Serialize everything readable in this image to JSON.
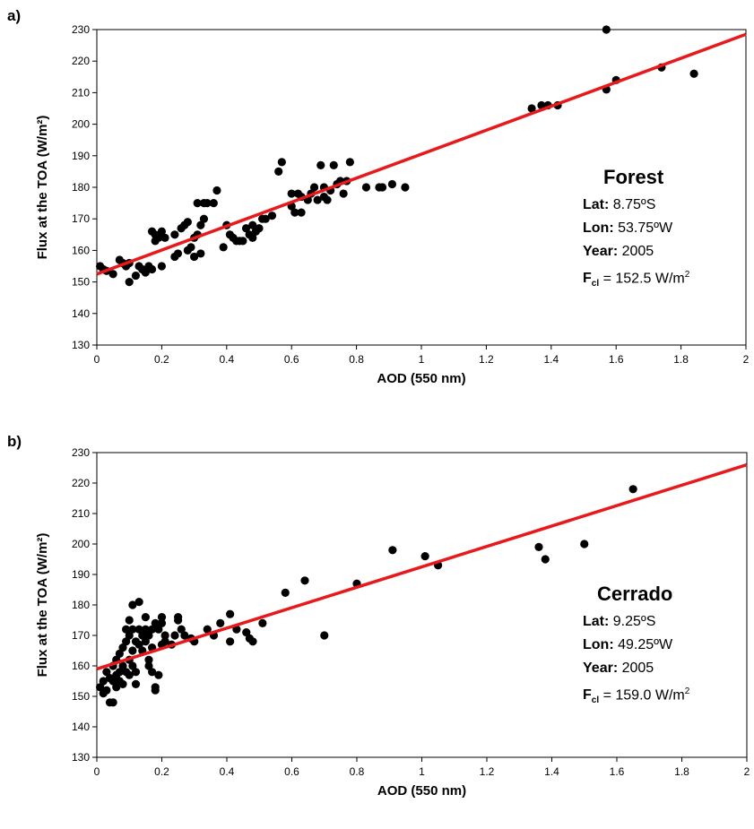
{
  "chart_data": [
    {
      "type": "scatter",
      "panel_label": "a)",
      "xlabel": "AOD (550 nm)",
      "ylabel": "Flux at the TOA (W/m²)",
      "xlim": [
        0,
        2
      ],
      "ylim": [
        130,
        230
      ],
      "xticks": [
        "0",
        "0.2",
        "0.4",
        "0.6",
        "0.8",
        "1",
        "1.2",
        "1.4",
        "1.6",
        "1.8",
        "2"
      ],
      "yticks": [
        "130",
        "140",
        "150",
        "160",
        "170",
        "180",
        "190",
        "200",
        "210",
        "220",
        "230"
      ],
      "grid": false,
      "marker_color": "#000000",
      "fit_color": "#e8181b",
      "fit_line": {
        "x": [
          0,
          2
        ],
        "y": [
          152.5,
          228.5
        ]
      },
      "annotation": {
        "title": "Forest",
        "lat_label": "Lat:",
        "lat_value": "8.75ºS",
        "lon_label": "Lon:",
        "lon_value": "53.75ºW",
        "year_label": "Year:",
        "year_value": "2005",
        "fcl_label": "F",
        "fcl_sub": "cl",
        "fcl_value": "= 152.5 W/m",
        "fcl_sup": "2"
      },
      "points": [
        [
          0.01,
          155
        ],
        [
          0.02,
          154
        ],
        [
          0.03,
          153.5
        ],
        [
          0.05,
          152.5
        ],
        [
          0.07,
          157
        ],
        [
          0.08,
          156
        ],
        [
          0.09,
          155
        ],
        [
          0.1,
          150
        ],
        [
          0.1,
          156
        ],
        [
          0.12,
          152
        ],
        [
          0.13,
          155
        ],
        [
          0.14,
          154
        ],
        [
          0.15,
          153
        ],
        [
          0.16,
          155
        ],
        [
          0.17,
          154
        ],
        [
          0.17,
          166
        ],
        [
          0.18,
          165
        ],
        [
          0.18,
          163
        ],
        [
          0.19,
          164
        ],
        [
          0.2,
          155
        ],
        [
          0.2,
          166
        ],
        [
          0.21,
          164
        ],
        [
          0.24,
          158
        ],
        [
          0.24,
          165
        ],
        [
          0.25,
          159
        ],
        [
          0.26,
          167
        ],
        [
          0.27,
          168
        ],
        [
          0.28,
          160
        ],
        [
          0.28,
          169
        ],
        [
          0.29,
          161
        ],
        [
          0.3,
          158
        ],
        [
          0.3,
          164
        ],
        [
          0.31,
          165
        ],
        [
          0.31,
          175
        ],
        [
          0.32,
          159
        ],
        [
          0.32,
          168
        ],
        [
          0.33,
          170
        ],
        [
          0.33,
          175
        ],
        [
          0.34,
          175
        ],
        [
          0.36,
          175
        ],
        [
          0.37,
          179
        ],
        [
          0.39,
          161
        ],
        [
          0.4,
          168
        ],
        [
          0.41,
          165
        ],
        [
          0.42,
          164
        ],
        [
          0.43,
          163
        ],
        [
          0.44,
          163
        ],
        [
          0.45,
          163
        ],
        [
          0.46,
          167
        ],
        [
          0.47,
          165
        ],
        [
          0.48,
          164
        ],
        [
          0.48,
          168
        ],
        [
          0.49,
          166
        ],
        [
          0.5,
          167
        ],
        [
          0.51,
          170
        ],
        [
          0.52,
          170
        ],
        [
          0.54,
          171
        ],
        [
          0.56,
          185
        ],
        [
          0.57,
          188
        ],
        [
          0.6,
          178
        ],
        [
          0.6,
          174
        ],
        [
          0.61,
          172
        ],
        [
          0.62,
          178
        ],
        [
          0.63,
          177
        ],
        [
          0.63,
          172
        ],
        [
          0.65,
          176
        ],
        [
          0.66,
          178
        ],
        [
          0.67,
          180
        ],
        [
          0.68,
          176
        ],
        [
          0.69,
          187
        ],
        [
          0.7,
          180
        ],
        [
          0.7,
          177
        ],
        [
          0.71,
          176
        ],
        [
          0.72,
          179
        ],
        [
          0.73,
          187
        ],
        [
          0.74,
          181
        ],
        [
          0.75,
          182
        ],
        [
          0.76,
          178
        ],
        [
          0.77,
          182
        ],
        [
          0.78,
          188
        ],
        [
          0.83,
          180
        ],
        [
          0.87,
          180
        ],
        [
          0.88,
          180
        ],
        [
          0.91,
          181
        ],
        [
          0.95,
          180
        ],
        [
          1.34,
          205
        ],
        [
          1.37,
          206
        ],
        [
          1.39,
          206
        ],
        [
          1.42,
          206
        ],
        [
          1.57,
          230
        ],
        [
          1.57,
          211
        ],
        [
          1.6,
          214
        ],
        [
          1.74,
          218
        ],
        [
          1.84,
          216
        ]
      ]
    },
    {
      "type": "scatter",
      "panel_label": "b)",
      "xlabel": "AOD (550 nm)",
      "ylabel": "Flux at the TOA (W/m²)",
      "xlim": [
        0,
        2
      ],
      "ylim": [
        130,
        230
      ],
      "xticks": [
        "0",
        "0.2",
        "0.4",
        "0.6",
        "0.8",
        "1",
        "1.2",
        "1.4",
        "1.6",
        "1.8",
        "2"
      ],
      "yticks": [
        "130",
        "140",
        "150",
        "160",
        "170",
        "180",
        "190",
        "200",
        "210",
        "220",
        "230"
      ],
      "grid": false,
      "marker_color": "#000000",
      "fit_color": "#e8181b",
      "fit_line": {
        "x": [
          0,
          2
        ],
        "y": [
          159.0,
          226.0
        ]
      },
      "annotation": {
        "title": "Cerrado",
        "lat_label": "Lat:",
        "lat_value": "9.25ºS",
        "lon_label": "Lon:",
        "lon_value": "49.25ºW",
        "year_label": "Year:",
        "year_value": "2005",
        "fcl_label": "F",
        "fcl_sub": "cl",
        "fcl_value": "= 159.0 W/m",
        "fcl_sup": "2"
      },
      "points": [
        [
          0.01,
          153
        ],
        [
          0.02,
          155
        ],
        [
          0.02,
          151
        ],
        [
          0.03,
          158
        ],
        [
          0.03,
          152
        ],
        [
          0.04,
          148
        ],
        [
          0.04,
          156
        ],
        [
          0.05,
          148
        ],
        [
          0.05,
          160
        ],
        [
          0.05,
          155
        ],
        [
          0.06,
          162
        ],
        [
          0.06,
          157
        ],
        [
          0.06,
          153
        ],
        [
          0.07,
          164
        ],
        [
          0.07,
          158
        ],
        [
          0.07,
          155
        ],
        [
          0.08,
          166
        ],
        [
          0.08,
          160
        ],
        [
          0.08,
          154
        ],
        [
          0.09,
          168
        ],
        [
          0.09,
          158
        ],
        [
          0.09,
          172
        ],
        [
          0.1,
          175
        ],
        [
          0.1,
          170
        ],
        [
          0.1,
          162
        ],
        [
          0.1,
          157
        ],
        [
          0.11,
          180
        ],
        [
          0.11,
          172
        ],
        [
          0.11,
          165
        ],
        [
          0.11,
          160
        ],
        [
          0.12,
          158
        ],
        [
          0.12,
          154
        ],
        [
          0.12,
          168
        ],
        [
          0.13,
          181
        ],
        [
          0.13,
          172
        ],
        [
          0.13,
          167
        ],
        [
          0.14,
          170
        ],
        [
          0.14,
          165
        ],
        [
          0.15,
          176
        ],
        [
          0.15,
          168
        ],
        [
          0.15,
          172
        ],
        [
          0.16,
          170
        ],
        [
          0.16,
          162
        ],
        [
          0.16,
          160
        ],
        [
          0.17,
          172
        ],
        [
          0.17,
          166
        ],
        [
          0.17,
          158
        ],
        [
          0.18,
          174
        ],
        [
          0.18,
          152
        ],
        [
          0.18,
          153
        ],
        [
          0.19,
          157
        ],
        [
          0.19,
          172
        ],
        [
          0.2,
          176
        ],
        [
          0.2,
          174
        ],
        [
          0.2,
          167
        ],
        [
          0.21,
          168
        ],
        [
          0.21,
          170
        ],
        [
          0.23,
          167
        ],
        [
          0.24,
          170
        ],
        [
          0.25,
          176
        ],
        [
          0.25,
          175
        ],
        [
          0.26,
          172
        ],
        [
          0.27,
          170
        ],
        [
          0.29,
          169
        ],
        [
          0.3,
          168
        ],
        [
          0.34,
          172
        ],
        [
          0.36,
          170
        ],
        [
          0.38,
          174
        ],
        [
          0.41,
          168
        ],
        [
          0.41,
          177
        ],
        [
          0.43,
          172
        ],
        [
          0.46,
          171
        ],
        [
          0.47,
          169
        ],
        [
          0.48,
          168
        ],
        [
          0.51,
          174
        ],
        [
          0.58,
          184
        ],
        [
          0.64,
          188
        ],
        [
          0.7,
          170
        ],
        [
          0.8,
          187
        ],
        [
          0.91,
          198
        ],
        [
          1.01,
          196
        ],
        [
          1.05,
          193
        ],
        [
          1.36,
          199
        ],
        [
          1.38,
          195
        ],
        [
          1.5,
          200
        ],
        [
          1.65,
          218
        ]
      ]
    }
  ]
}
